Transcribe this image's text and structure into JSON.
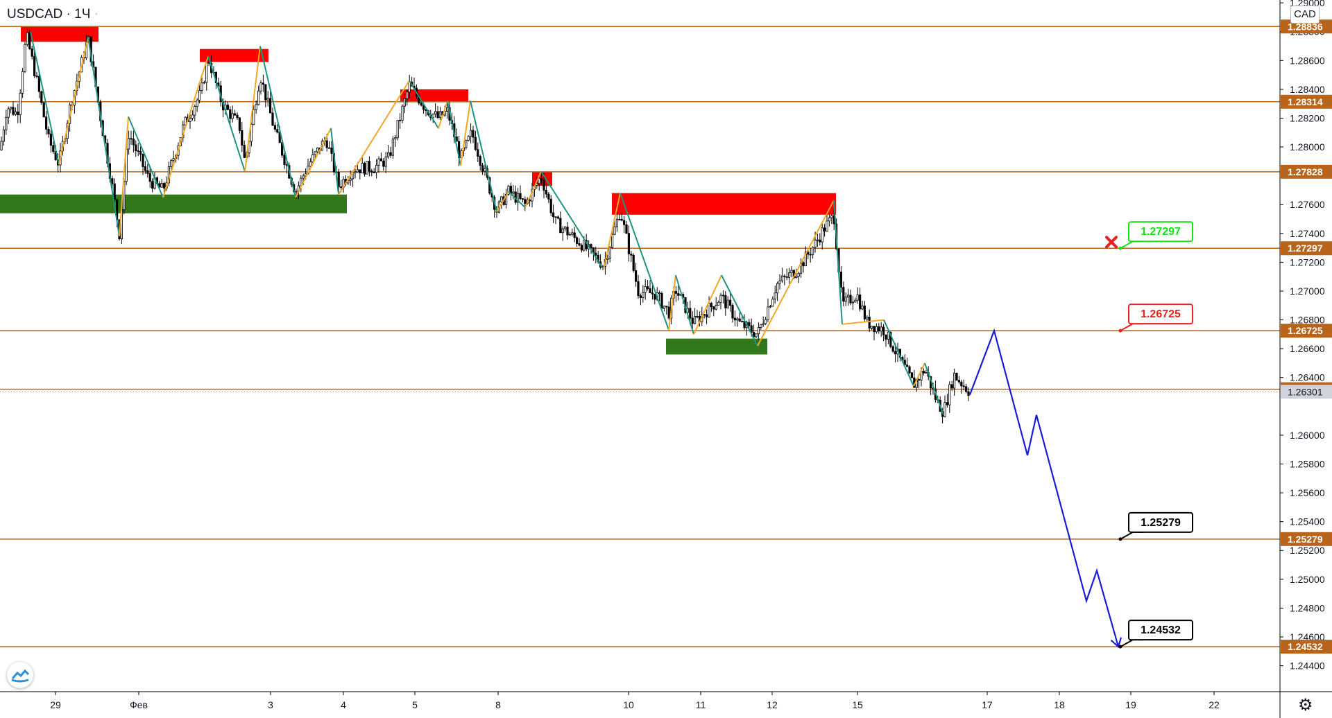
{
  "header": {
    "symbol": "USDCAD",
    "separator": "·",
    "interval": "1Ч",
    "dot": "·"
  },
  "currency_badge": "CAD",
  "icons": {
    "settings": "gear-icon",
    "logo": "tradingview-logo-icon"
  },
  "colors": {
    "level_line": "#b8651b",
    "label_fill": "#b8651b",
    "current_price_fill": "#d1d4dc",
    "zz_teal": "#1f9382",
    "zz_orange": "#f5a623",
    "forecast": "#1a1adb",
    "supply": "#ff0000",
    "demand": "#33771b",
    "target_green": "#13e313",
    "target_red": "#ee1f1f"
  },
  "chart_data": {
    "type": "candlestick",
    "symbol": "USDCAD",
    "interval": "1Ч",
    "currency": "CAD",
    "ylim": [
      1.2422,
      1.2902
    ],
    "xlim": [
      0,
      1820
    ],
    "y_ticks": [
      "1.24400",
      "1.24600",
      "1.24800",
      "1.25000",
      "1.25200",
      "1.25400",
      "1.25600",
      "1.25800",
      "1.26000",
      "1.26400",
      "1.26600",
      "1.26800",
      "1.27000",
      "1.27200",
      "1.27400",
      "1.27600",
      "1.28000",
      "1.28200",
      "1.28400",
      "1.28600",
      "1.28800",
      "1.29000"
    ],
    "x_ticks": [
      {
        "label": "29",
        "x": 80
      },
      {
        "label": "Фев",
        "x": 200
      },
      {
        "label": "3",
        "x": 390
      },
      {
        "label": "4",
        "x": 495
      },
      {
        "label": "5",
        "x": 598
      },
      {
        "label": "8",
        "x": 718
      },
      {
        "label": "10",
        "x": 906
      },
      {
        "label": "11",
        "x": 1010
      },
      {
        "label": "12",
        "x": 1113
      },
      {
        "label": "15",
        "x": 1236
      },
      {
        "label": "17",
        "x": 1423
      },
      {
        "label": "18",
        "x": 1527
      },
      {
        "label": "19",
        "x": 1630
      },
      {
        "label": "22",
        "x": 1750
      }
    ],
    "levels": [
      "1.28836",
      "1.28314",
      "1.27828",
      "1.27297",
      "1.26725",
      "1.26319",
      "1.25279",
      "1.24532"
    ],
    "current_price": "1.26301",
    "callouts": [
      {
        "label": "1.27297",
        "x": 1615,
        "y": 1.27297,
        "style": "green"
      },
      {
        "label": "1.26725",
        "x": 1615,
        "y": 1.26725,
        "style": "red"
      },
      {
        "label": "1.25279",
        "x": 1615,
        "y": 1.25279,
        "style": "black"
      },
      {
        "label": "1.24532",
        "x": 1615,
        "y": 1.24532,
        "style": "black"
      }
    ],
    "stop_marker": {
      "x": 1602,
      "y": 1.2734
    },
    "supply_zones": [
      {
        "x0": 30,
        "x1": 142,
        "y0": 1.2873,
        "y1": 1.2884
      },
      {
        "x0": 288,
        "x1": 387,
        "y0": 1.2859,
        "y1": 1.2868
      },
      {
        "x0": 577,
        "x1": 675,
        "y0": 1.2831,
        "y1": 1.284
      },
      {
        "x0": 767,
        "x1": 796,
        "y0": 1.2773,
        "y1": 1.2783
      },
      {
        "x0": 882,
        "x1": 1205,
        "y0": 1.2753,
        "y1": 1.2768
      }
    ],
    "demand_zones": [
      {
        "x0": 0,
        "x1": 500,
        "y0": 1.2754,
        "y1": 1.2767
      },
      {
        "x0": 960,
        "x1": 1106,
        "y0": 1.2656,
        "y1": 1.2667
      }
    ],
    "zigzag_segments": [
      {
        "c": "teal",
        "pts": [
          [
            44,
            1.288
          ],
          [
            85,
            1.2788
          ]
        ]
      },
      {
        "c": "orange",
        "pts": [
          [
            85,
            1.2788
          ],
          [
            127,
            1.2876
          ]
        ]
      },
      {
        "c": "teal",
        "pts": [
          [
            127,
            1.2876
          ],
          [
            172,
            1.2738
          ]
        ]
      },
      {
        "c": "orange",
        "pts": [
          [
            172,
            1.2738
          ],
          [
            185,
            1.2821
          ]
        ]
      },
      {
        "c": "teal",
        "pts": [
          [
            185,
            1.2821
          ],
          [
            235,
            1.2765
          ]
        ]
      },
      {
        "c": "orange",
        "pts": [
          [
            235,
            1.2765
          ],
          [
            300,
            1.2863
          ]
        ]
      },
      {
        "c": "teal",
        "pts": [
          [
            300,
            1.2863
          ],
          [
            353,
            1.2783
          ]
        ]
      },
      {
        "c": "orange",
        "pts": [
          [
            353,
            1.2783
          ],
          [
            375,
            1.287
          ]
        ]
      },
      {
        "c": "teal",
        "pts": [
          [
            375,
            1.287
          ],
          [
            426,
            1.2765
          ]
        ]
      },
      {
        "c": "orange",
        "pts": [
          [
            426,
            1.2765
          ],
          [
            477,
            1.2813
          ]
        ]
      },
      {
        "c": "teal",
        "pts": [
          [
            477,
            1.2813
          ],
          [
            488,
            1.2767
          ]
        ]
      },
      {
        "c": "orange",
        "pts": [
          [
            488,
            1.2767
          ],
          [
            590,
            1.2846
          ]
        ]
      },
      {
        "c": "teal",
        "pts": [
          [
            590,
            1.2846
          ],
          [
            632,
            1.2813
          ]
        ]
      },
      {
        "c": "orange",
        "pts": [
          [
            632,
            1.2813
          ],
          [
            645,
            1.2832
          ]
        ]
      },
      {
        "c": "teal",
        "pts": [
          [
            645,
            1.2832
          ],
          [
            664,
            1.2787
          ]
        ]
      },
      {
        "c": "orange",
        "pts": [
          [
            664,
            1.2787
          ],
          [
            678,
            1.2832
          ]
        ]
      },
      {
        "c": "teal",
        "pts": [
          [
            678,
            1.2832
          ],
          [
            716,
            1.2755
          ]
        ]
      },
      {
        "c": "orange",
        "pts": [
          [
            716,
            1.2755
          ],
          [
            733,
            1.2769
          ]
        ]
      },
      {
        "c": "teal",
        "pts": [
          [
            733,
            1.2769
          ],
          [
            757,
            1.2758
          ]
        ]
      },
      {
        "c": "orange",
        "pts": [
          [
            757,
            1.2758
          ],
          [
            780,
            1.2783
          ]
        ]
      },
      {
        "c": "teal",
        "pts": [
          [
            780,
            1.2783
          ],
          [
            870,
            1.2715
          ]
        ]
      },
      {
        "c": "orange",
        "pts": [
          [
            870,
            1.2715
          ],
          [
            894,
            1.2768
          ]
        ]
      },
      {
        "c": "teal",
        "pts": [
          [
            894,
            1.2768
          ],
          [
            964,
            1.2673
          ]
        ]
      },
      {
        "c": "orange",
        "pts": [
          [
            964,
            1.2673
          ],
          [
            974,
            1.2711
          ]
        ]
      },
      {
        "c": "teal",
        "pts": [
          [
            974,
            1.2711
          ],
          [
            1000,
            1.267
          ]
        ]
      },
      {
        "c": "orange",
        "pts": [
          [
            1000,
            1.267
          ],
          [
            1040,
            1.2711
          ]
        ]
      },
      {
        "c": "teal",
        "pts": [
          [
            1040,
            1.2711
          ],
          [
            1092,
            1.2662
          ]
        ]
      },
      {
        "c": "orange",
        "pts": [
          [
            1092,
            1.2662
          ],
          [
            1202,
            1.2763
          ]
        ]
      },
      {
        "c": "teal",
        "pts": [
          [
            1202,
            1.2763
          ],
          [
            1214,
            1.2677
          ]
        ]
      },
      {
        "c": "orange",
        "pts": [
          [
            1214,
            1.2677
          ],
          [
            1274,
            1.268
          ]
        ]
      },
      {
        "c": "teal",
        "pts": [
          [
            1274,
            1.268
          ],
          [
            1317,
            1.2634
          ]
        ]
      },
      {
        "c": "orange",
        "pts": [
          [
            1317,
            1.2634
          ],
          [
            1333,
            1.265
          ]
        ]
      },
      {
        "c": "teal",
        "pts": [
          [
            1333,
            1.265
          ],
          [
            1360,
            1.2614
          ]
        ]
      }
    ],
    "forecast_path": [
      [
        1398,
        1.2628
      ],
      [
        1433,
        1.26725
      ],
      [
        1481,
        1.2586
      ],
      [
        1494,
        1.2614
      ],
      [
        1566,
        1.2485
      ],
      [
        1581,
        1.2506
      ],
      [
        1612,
        1.24532
      ]
    ],
    "candle_anchors": [
      [
        0,
        1.2798
      ],
      [
        10,
        1.2828
      ],
      [
        25,
        1.2823
      ],
      [
        38,
        1.2878
      ],
      [
        52,
        1.2848
      ],
      [
        70,
        1.2805
      ],
      [
        85,
        1.2788
      ],
      [
        100,
        1.2826
      ],
      [
        127,
        1.2876
      ],
      [
        145,
        1.282
      ],
      [
        160,
        1.2778
      ],
      [
        172,
        1.274
      ],
      [
        185,
        1.281
      ],
      [
        215,
        1.2777
      ],
      [
        235,
        1.277
      ],
      [
        265,
        1.2815
      ],
      [
        290,
        1.2838
      ],
      [
        300,
        1.2862
      ],
      [
        320,
        1.283
      ],
      [
        345,
        1.2815
      ],
      [
        353,
        1.2789
      ],
      [
        375,
        1.285
      ],
      [
        395,
        1.2813
      ],
      [
        426,
        1.2769
      ],
      [
        445,
        1.2788
      ],
      [
        470,
        1.2806
      ],
      [
        488,
        1.2773
      ],
      [
        510,
        1.2785
      ],
      [
        540,
        1.2786
      ],
      [
        560,
        1.2792
      ],
      [
        590,
        1.2843
      ],
      [
        615,
        1.2826
      ],
      [
        632,
        1.282
      ],
      [
        645,
        1.2825
      ],
      [
        664,
        1.2792
      ],
      [
        680,
        1.281
      ],
      [
        716,
        1.2756
      ],
      [
        733,
        1.2769
      ],
      [
        757,
        1.276
      ],
      [
        780,
        1.278
      ],
      [
        800,
        1.2748
      ],
      [
        840,
        1.2732
      ],
      [
        870,
        1.2718
      ],
      [
        894,
        1.2756
      ],
      [
        920,
        1.27
      ],
      [
        945,
        1.2698
      ],
      [
        964,
        1.2685
      ],
      [
        974,
        1.2701
      ],
      [
        1000,
        1.2678
      ],
      [
        1040,
        1.2696
      ],
      [
        1065,
        1.2678
      ],
      [
        1092,
        1.267
      ],
      [
        1120,
        1.2705
      ],
      [
        1150,
        1.2715
      ],
      [
        1175,
        1.2733
      ],
      [
        1190,
        1.2745
      ],
      [
        1202,
        1.2752
      ],
      [
        1214,
        1.269
      ],
      [
        1235,
        1.2698
      ],
      [
        1250,
        1.2678
      ],
      [
        1274,
        1.2673
      ],
      [
        1300,
        1.265
      ],
      [
        1317,
        1.2635
      ],
      [
        1333,
        1.2646
      ],
      [
        1350,
        1.2624
      ],
      [
        1360,
        1.2616
      ],
      [
        1375,
        1.2642
      ],
      [
        1390,
        1.2634
      ],
      [
        1398,
        1.263
      ]
    ]
  }
}
